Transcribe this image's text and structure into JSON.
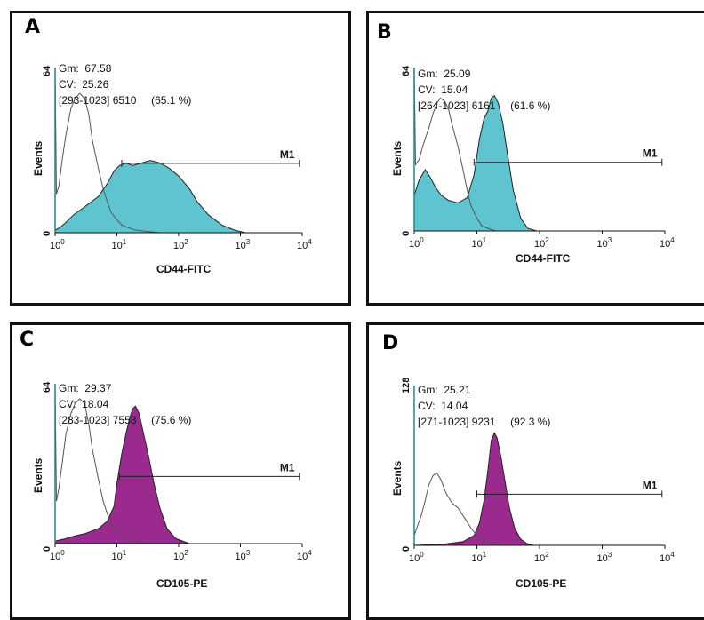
{
  "chart_data": [
    {
      "panel": "A",
      "type": "histogram-overlay",
      "xlabel": "CD44-FITC",
      "ylabel": "Events",
      "xscale": "log",
      "xlim": [
        1,
        10000
      ],
      "ylim": [
        0,
        64
      ],
      "y_ticks": [
        "0",
        "64"
      ],
      "stats": {
        "gm": "Gm:  67.58",
        "cv": "CV:  25.26",
        "region": "[293-1023] 6510     (65.1 %)"
      },
      "gate": {
        "label": "M1",
        "x_start": 12,
        "x_end": 9000
      },
      "fill_color": "#5ec4d0",
      "series": [
        {
          "role": "control",
          "x": [
            1.0,
            1.05,
            1.15,
            1.3,
            1.5,
            1.8,
            2.1,
            2.5,
            3.0,
            3.5,
            4.0,
            5.0,
            6.0,
            7.0,
            8.0,
            10.0,
            12.0,
            15.0,
            20.0,
            30.0,
            50.0
          ],
          "y": [
            64,
            15,
            18,
            28,
            38,
            48,
            52,
            54,
            52,
            46,
            36,
            25,
            17,
            12,
            8,
            5,
            3,
            2,
            1,
            0.5,
            0
          ]
        },
        {
          "role": "stained",
          "x": [
            1.0,
            1.2,
            1.5,
            2.0,
            3.0,
            5.0,
            7.0,
            9.0,
            11.0,
            14.0,
            18.0,
            25.0,
            35.0,
            50.0,
            70.0,
            100.0,
            150.0,
            200.0,
            300.0,
            500.0,
            800.0,
            1200.0
          ],
          "y": [
            1,
            2,
            4,
            7,
            10,
            14,
            19,
            24,
            26,
            27,
            26,
            27,
            28,
            27,
            25,
            22,
            17,
            12,
            7,
            3,
            1,
            0
          ]
        }
      ]
    },
    {
      "panel": "B",
      "type": "histogram-overlay",
      "xlabel": "CD44-FITC",
      "ylabel": "Events",
      "xscale": "log",
      "xlim": [
        1,
        10000
      ],
      "ylim": [
        0,
        64
      ],
      "y_ticks": [
        "0",
        "64"
      ],
      "stats": {
        "gm": "Gm:  25.09",
        "cv": "CV:  15.04",
        "region": "[264-1023] 6161     (61.6 %)"
      },
      "gate": {
        "label": "M1",
        "x_start": 9,
        "x_end": 9000
      },
      "fill_color": "#5ec4d0",
      "series": [
        {
          "role": "control",
          "x": [
            1.0,
            1.05,
            1.2,
            1.4,
            1.7,
            2.0,
            2.3,
            2.6,
            3.0,
            3.5,
            4.0,
            5.0,
            6.0,
            7.0,
            8.0,
            10.0,
            12.0,
            15.0,
            20.0
          ],
          "y": [
            64,
            26,
            28,
            34,
            40,
            46,
            50,
            52,
            51,
            48,
            42,
            33,
            24,
            16,
            10,
            5,
            2,
            1,
            0
          ]
        },
        {
          "role": "stained",
          "x": [
            1.0,
            1.2,
            1.5,
            1.8,
            2.2,
            2.7,
            3.5,
            5.0,
            7.0,
            9.0,
            11.0,
            13.0,
            15.0,
            17.0,
            19.0,
            22.0,
            26.0,
            30.0,
            38.0,
            50.0,
            65.0,
            90.0
          ],
          "y": [
            14,
            20,
            24,
            21,
            17,
            14,
            12,
            11,
            13,
            22,
            36,
            44,
            47,
            52,
            53,
            50,
            42,
            32,
            16,
            5,
            1,
            0
          ]
        }
      ]
    },
    {
      "panel": "C",
      "type": "histogram-overlay",
      "xlabel": "CD105-PE",
      "ylabel": "Events",
      "xscale": "log",
      "xlim": [
        1,
        10000
      ],
      "ylim": [
        0,
        64
      ],
      "y_ticks": [
        "0",
        "64"
      ],
      "stats": {
        "gm": "Gm:  29.37",
        "cv": "CV:  18.04",
        "region": "[283-1023] 7558     (75.6 %)"
      },
      "gate": {
        "label": "M1",
        "x_start": 11,
        "x_end": 9000
      },
      "fill_color": "#9b2a8f",
      "series": [
        {
          "role": "control",
          "x": [
            1.0,
            1.05,
            1.15,
            1.3,
            1.5,
            1.8,
            2.1,
            2.5,
            3.0,
            3.5,
            4.0,
            5.0,
            6.0,
            7.0,
            8.0,
            10.0,
            12.0,
            15.0,
            20.0,
            30.0
          ],
          "y": [
            64,
            17,
            22,
            32,
            44,
            52,
            56,
            58,
            56,
            48,
            38,
            26,
            17,
            12,
            8,
            5,
            3,
            2,
            1,
            0
          ]
        },
        {
          "role": "stained",
          "x": [
            1.0,
            1.5,
            2.0,
            3.0,
            5.0,
            7.0,
            9.0,
            10.0,
            12.0,
            14.0,
            16.0,
            18.0,
            20.0,
            23.0,
            27.0,
            32.0,
            40.0,
            50.0,
            65.0,
            90.0,
            150.0
          ],
          "y": [
            1,
            2,
            3,
            4,
            6,
            9,
            15,
            24,
            36,
            44,
            50,
            54,
            55,
            52,
            44,
            36,
            24,
            14,
            6,
            2,
            0
          ]
        }
      ]
    },
    {
      "panel": "D",
      "type": "histogram-overlay",
      "xlabel": "CD105-PE",
      "ylabel": "Events",
      "xscale": "log",
      "xlim": [
        1,
        10000
      ],
      "ylim": [
        0,
        128
      ],
      "y_ticks": [
        "0",
        "128"
      ],
      "stats": {
        "gm": "Gm:  25.21",
        "cv": "CV:  14.04",
        "region": "[271-1023] 9231     (92.3 %)"
      },
      "gate": {
        "label": "M1",
        "x_start": 10,
        "x_end": 9000
      },
      "fill_color": "#9b2a8f",
      "series": [
        {
          "role": "control",
          "x": [
            1.0,
            1.1,
            1.3,
            1.5,
            1.7,
            2.0,
            2.3,
            2.7,
            3.2,
            4.0,
            5.0,
            6.0,
            8.0,
            10.0,
            13.0,
            20.0,
            30.0
          ],
          "y": [
            8,
            14,
            24,
            36,
            48,
            56,
            58,
            52,
            42,
            34,
            30,
            24,
            14,
            8,
            4,
            1,
            0
          ]
        },
        {
          "role": "stained",
          "x": [
            1.0,
            3.0,
            6.0,
            9.0,
            11.0,
            13.0,
            15.0,
            17.0,
            19.0,
            21.0,
            24.0,
            28.0,
            33.0,
            40.0,
            50.0,
            65.0,
            80.0
          ],
          "y": [
            0,
            1,
            3,
            8,
            18,
            36,
            60,
            84,
            90,
            86,
            72,
            52,
            30,
            14,
            5,
            1,
            0
          ]
        }
      ]
    }
  ]
}
